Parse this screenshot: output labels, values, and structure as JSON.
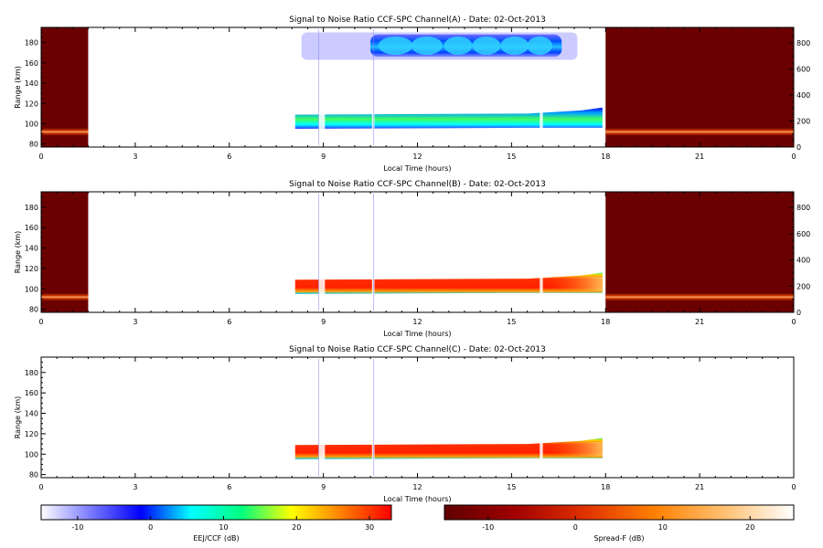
{
  "chart_data": [
    {
      "type": "heatmap",
      "title": "Signal to Noise Ratio CCF-SPC Channel(A) - Date: 02-Oct-2013",
      "xlabel": "Local Time (hours)",
      "ylabel": "Range (km)",
      "xlim": [
        0,
        24
      ],
      "xticks": [
        "0",
        "3",
        "6",
        "9",
        "12",
        "15",
        "18",
        "21",
        "0"
      ],
      "ylim": [
        77,
        195
      ],
      "yticks": [
        80,
        100,
        120,
        140,
        160,
        180
      ],
      "right_ylim": [
        0,
        920
      ],
      "right_yticks": [
        0,
        200,
        400,
        600,
        800
      ],
      "spread_f_blocks": [
        [
          0,
          1.5
        ],
        [
          18,
          24
        ]
      ],
      "spread_f_band_km": [
        88,
        96
      ],
      "eej_layers": [
        {
          "range_km": [
            93,
            121
          ],
          "time_h": [
            8.1,
            17.9
          ],
          "peak_db": 12
        },
        {
          "range_km": [
            162,
            190
          ],
          "time_h": [
            8.3,
            17.1
          ],
          "peak_db": 3
        }
      ]
    },
    {
      "type": "heatmap",
      "title": "Signal to Noise Ratio CCF-SPC Channel(B) - Date: 02-Oct-2013",
      "xlabel": "Local Time (hours)",
      "ylabel": "Range (km)",
      "xlim": [
        0,
        24
      ],
      "xticks": [
        "0",
        "3",
        "6",
        "9",
        "12",
        "15",
        "18",
        "21",
        "0"
      ],
      "ylim": [
        77,
        195
      ],
      "yticks": [
        80,
        100,
        120,
        140,
        160,
        180
      ],
      "right_ylim": [
        0,
        920
      ],
      "right_yticks": [
        0,
        200,
        400,
        600,
        800
      ],
      "spread_f_blocks": [
        [
          0,
          1.5
        ],
        [
          18,
          24
        ]
      ],
      "spread_f_band_km": [
        88,
        96
      ],
      "eej_layers": [
        {
          "range_km": [
            93,
            121
          ],
          "time_h": [
            8.1,
            17.9
          ],
          "peak_db": 28
        }
      ]
    },
    {
      "type": "heatmap",
      "title": "Signal to Noise Ratio CCF-SPC Channel(C) - Date: 02-Oct-2013",
      "xlabel": "Local Time (hours)",
      "ylabel": "Range (km)",
      "xlim": [
        0,
        24
      ],
      "xticks": [
        "0",
        "3",
        "6",
        "9",
        "12",
        "15",
        "18",
        "21",
        "0"
      ],
      "ylim": [
        77,
        195
      ],
      "yticks": [
        80,
        100,
        120,
        140,
        160,
        180
      ],
      "spread_f_blocks": [],
      "eej_layers": [
        {
          "range_km": [
            93,
            121
          ],
          "time_h": [
            8.1,
            17.9
          ],
          "peak_db": 28
        }
      ]
    }
  ],
  "colorbars": [
    {
      "label": "EEJ/CCF (dB)",
      "min": -15,
      "max": 33,
      "ticks": [
        "-10",
        "0",
        "10",
        "20",
        "30"
      ],
      "colors": [
        "#ffffff",
        "#7878ff",
        "#0000ff",
        "#00ffff",
        "#00ff80",
        "#ffff00",
        "#ff8000",
        "#ff0000"
      ]
    },
    {
      "label": "Spread-F (dB)",
      "min": -15,
      "max": 25,
      "ticks": [
        "-10",
        "0",
        "10",
        "20"
      ],
      "colors": [
        "#600000",
        "#a00000",
        "#e03000",
        "#ff8000",
        "#ffc070",
        "#ffffff"
      ]
    }
  ]
}
